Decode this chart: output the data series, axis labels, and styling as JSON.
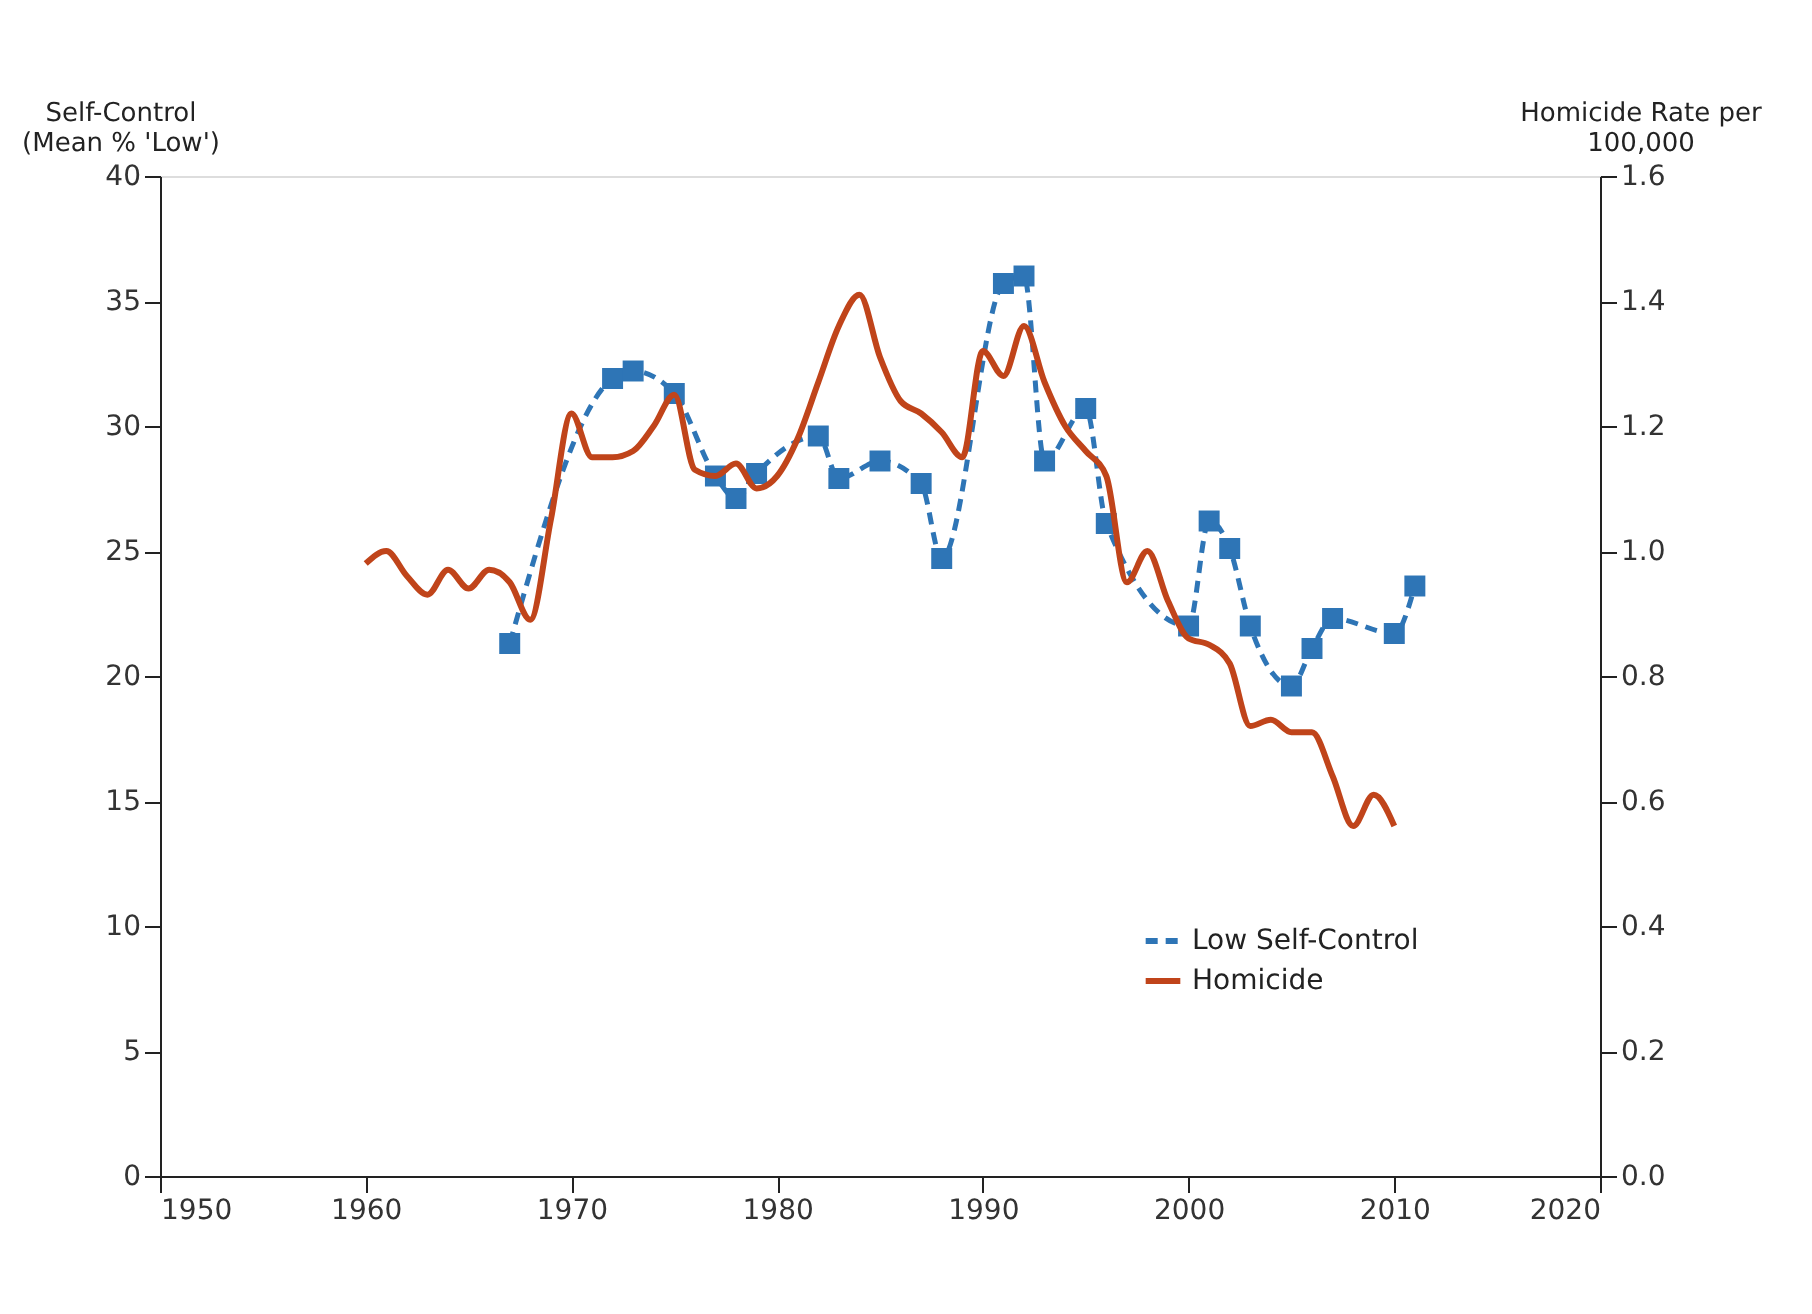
{
  "chart_data": {
    "type": "line",
    "ylabel": "Self-Control\n(Mean % 'Low')",
    "y2label": "Homicide Rate per\n100,000",
    "xlim": [
      1950,
      2020
    ],
    "xticks": [
      1950,
      1960,
      1970,
      1980,
      1990,
      2000,
      2010,
      2020
    ],
    "ylim": [
      0,
      40
    ],
    "yticks": [
      0,
      5,
      10,
      15,
      20,
      25,
      30,
      35,
      40
    ],
    "y2lim": [
      0,
      1.6
    ],
    "y2ticks": [
      {
        "value": 0,
        "label": "0.0"
      },
      0.2,
      0.4,
      0.6,
      0.8,
      {
        "value": 1,
        "label": "1.0"
      },
      1.2,
      1.4,
      1.6
    ],
    "grid": false,
    "legend": "bottom right",
    "series": [
      {
        "name": "Low Self-Control",
        "color": "#2e75b6",
        "marker": "square",
        "line_style": "dashed",
        "x": [
          1967,
          1972,
          1973,
          1975,
          1977,
          1978,
          1979,
          1982,
          1983,
          1985,
          1987,
          1988,
          1991,
          1992,
          1993,
          1995,
          1996,
          2000,
          2001,
          2002,
          2003,
          2005,
          2006,
          2007,
          2010,
          2011
        ],
        "values": [
          21.3,
          31.9,
          32.2,
          31.3,
          28.0,
          27.1,
          28.1,
          29.6,
          27.9,
          28.6,
          27.7,
          24.7,
          35.7,
          36.0,
          28.6,
          30.7,
          26.1,
          22.0,
          26.2,
          25.1,
          22.0,
          19.6,
          21.1,
          22.3,
          21.7,
          23.6
        ]
      },
      {
        "name": "Homicide",
        "color": "#c0441a",
        "marker": "none",
        "line_style": "solid",
        "axis": "y2",
        "x": [
          1960,
          1961,
          1962,
          1963,
          1964,
          1965,
          1966,
          1967,
          1968,
          1969,
          1970,
          1971,
          1972,
          1973,
          1974,
          1975,
          1976,
          1977,
          1978,
          1979,
          1980,
          1981,
          1982,
          1983,
          1984,
          1985,
          1986,
          1987,
          1988,
          1989,
          1990,
          1991,
          1992,
          1993,
          1994,
          1995,
          1996,
          1997,
          1998,
          1999,
          2000,
          2001,
          2002,
          2003,
          2004,
          2005,
          2006,
          2007,
          2008,
          2009,
          2010
        ],
        "values": [
          0.98,
          1.0,
          0.96,
          0.93,
          0.97,
          0.94,
          0.97,
          0.95,
          0.89,
          1.05,
          1.22,
          1.15,
          1.15,
          1.16,
          1.2,
          1.25,
          1.13,
          1.12,
          1.14,
          1.1,
          1.12,
          1.18,
          1.27,
          1.36,
          1.41,
          1.31,
          1.24,
          1.22,
          1.19,
          1.15,
          1.32,
          1.28,
          1.36,
          1.27,
          1.2,
          1.16,
          1.12,
          0.95,
          1.0,
          0.92,
          0.86,
          0.85,
          0.82,
          0.72,
          0.73,
          0.71,
          0.71,
          0.64,
          0.56,
          0.61,
          0.56
        ]
      }
    ]
  }
}
